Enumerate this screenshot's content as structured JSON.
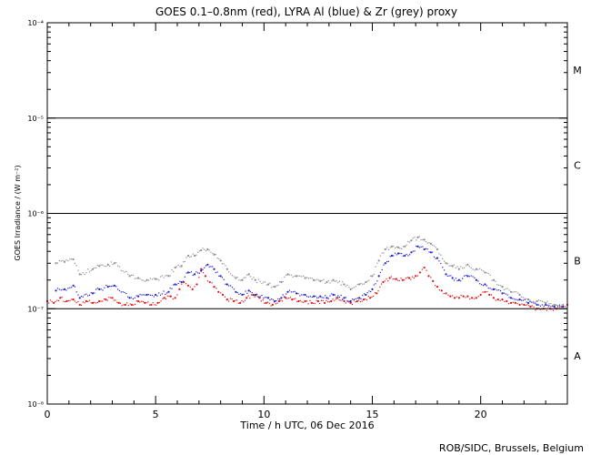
{
  "chart_data": {
    "type": "scatter",
    "title": "GOES 0.1–0.8nm (red), LYRA Al (blue) & Zr (grey) proxy",
    "xlabel": "Time / h UTC, 06 Dec 2016",
    "ylabel": "GOES Irradiance / (W m⁻²)",
    "credit": "ROB/SIDC, Brussels, Belgium",
    "x_range": [
      0,
      24
    ],
    "y_range": [
      1e-08,
      0.0001
    ],
    "y_scale": "log",
    "x_ticks": [
      0,
      5,
      10,
      15,
      20
    ],
    "x_tick_labels": [
      "0",
      "5",
      "10",
      "15",
      "20"
    ],
    "y_ticks": [
      1e-08,
      1e-07,
      1e-06,
      1e-05,
      0.0001
    ],
    "y_tick_labels": [
      "10⁻⁸",
      "10⁻⁷",
      "10⁻⁶",
      "10⁻⁵",
      "10⁻⁴"
    ],
    "flare_class_lines": [
      1e-07,
      1e-06,
      1e-05
    ],
    "flare_classes": [
      {
        "label": "A",
        "flux": 3.2e-08
      },
      {
        "label": "B",
        "flux": 3.2e-07
      },
      {
        "label": "C",
        "flux": 3.2e-06
      },
      {
        "label": "M",
        "flux": 3.2e-05
      }
    ],
    "series": [
      {
        "name": "GOES 0.1–0.8nm",
        "color": "#e01010",
        "x": [
          0.0,
          0.3,
          0.6,
          0.9,
          1.2,
          1.5,
          1.8,
          2.1,
          2.4,
          2.7,
          3.0,
          3.3,
          3.6,
          3.9,
          4.2,
          4.5,
          4.8,
          5.1,
          5.4,
          5.7,
          5.9,
          6.1,
          6.3,
          6.5,
          6.7,
          6.9,
          7.1,
          7.3,
          7.5,
          7.7,
          7.9,
          8.1,
          8.3,
          8.6,
          8.9,
          9.2,
          9.5,
          9.8,
          10.1,
          10.4,
          10.7,
          11.0,
          11.3,
          11.6,
          11.9,
          12.2,
          12.5,
          12.8,
          13.1,
          13.4,
          13.7,
          14.0,
          14.3,
          14.6,
          14.9,
          15.2,
          15.5,
          15.8,
          16.1,
          16.4,
          16.7,
          17.0,
          17.2,
          17.4,
          17.6,
          17.8,
          18.0,
          18.2,
          18.4,
          18.6,
          18.8,
          19.0,
          19.2,
          19.4,
          19.6,
          19.8,
          20.0,
          20.2,
          20.4,
          20.6,
          20.8,
          21.0,
          21.2,
          21.4,
          21.6,
          21.8,
          22.0,
          22.3,
          22.6,
          22.9,
          23.2,
          23.5,
          23.8,
          24.0
        ],
        "y": [
          1.2e-07,
          1.15e-07,
          1.3e-07,
          1.2e-07,
          1.25e-07,
          1.1e-07,
          1.2e-07,
          1.15e-07,
          1.2e-07,
          1.25e-07,
          1.3e-07,
          1.15e-07,
          1.1e-07,
          1.1e-07,
          1.2e-07,
          1.15e-07,
          1.1e-07,
          1.15e-07,
          1.3e-07,
          1.35e-07,
          1.3e-07,
          1.6e-07,
          1.9e-07,
          1.75e-07,
          1.6e-07,
          1.8e-07,
          2.6e-07,
          2.2e-07,
          1.9e-07,
          1.7e-07,
          1.5e-07,
          1.4e-07,
          1.25e-07,
          1.2e-07,
          1.15e-07,
          1.3e-07,
          1.4e-07,
          1.3e-07,
          1.15e-07,
          1.1e-07,
          1.2e-07,
          1.3e-07,
          1.25e-07,
          1.2e-07,
          1.2e-07,
          1.15e-07,
          1.2e-07,
          1.15e-07,
          1.2e-07,
          1.3e-07,
          1.2e-07,
          1.15e-07,
          1.2e-07,
          1.25e-07,
          1.3e-07,
          1.45e-07,
          1.9e-07,
          2.1e-07,
          2.05e-07,
          2e-07,
          2.1e-07,
          2.2e-07,
          2.4e-07,
          2.7e-07,
          2.2e-07,
          1.95e-07,
          1.7e-07,
          1.55e-07,
          1.45e-07,
          1.35e-07,
          1.3e-07,
          1.3e-07,
          1.35e-07,
          1.35e-07,
          1.3e-07,
          1.3e-07,
          1.4e-07,
          1.5e-07,
          1.4e-07,
          1.3e-07,
          1.25e-07,
          1.25e-07,
          1.2e-07,
          1.15e-07,
          1.15e-07,
          1.1e-07,
          1.1e-07,
          1.05e-07,
          1e-07,
          1e-07,
          1e-07,
          1e-07,
          1.05e-07,
          1.1e-07
        ]
      },
      {
        "name": "LYRA Al proxy",
        "color": "#1a1ad0",
        "x": [
          0.4,
          0.8,
          1.2,
          1.5,
          2.1,
          2.4,
          2.8,
          3.1,
          3.8,
          4.2,
          4.6,
          5.0,
          5.6,
          5.9,
          6.2,
          6.5,
          6.8,
          7.1,
          7.4,
          7.7,
          8.0,
          8.3,
          8.7,
          9.0,
          9.3,
          9.6,
          10.2,
          10.5,
          10.8,
          11.1,
          11.5,
          11.9,
          12.3,
          12.6,
          12.9,
          13.2,
          13.7,
          14.0,
          14.4,
          14.7,
          15.0,
          15.3,
          15.6,
          15.9,
          16.2,
          16.5,
          16.8,
          17.1,
          17.4,
          17.7,
          18.0,
          18.4,
          18.7,
          19.0,
          19.4,
          19.8,
          20.2,
          20.6,
          21.0,
          21.4,
          21.8,
          22.2,
          22.6,
          23.0,
          23.4,
          23.8
        ],
        "y": [
          1.55e-07,
          1.6e-07,
          1.75e-07,
          1.3e-07,
          1.45e-07,
          1.6e-07,
          1.7e-07,
          1.75e-07,
          1.3e-07,
          1.35e-07,
          1.4e-07,
          1.4e-07,
          1.5e-07,
          1.8e-07,
          1.9e-07,
          2.4e-07,
          2.3e-07,
          2.5e-07,
          2.9e-07,
          2.6e-07,
          2.2e-07,
          1.8e-07,
          1.5e-07,
          1.4e-07,
          1.55e-07,
          1.4e-07,
          1.3e-07,
          1.2e-07,
          1.3e-07,
          1.5e-07,
          1.45e-07,
          1.4e-07,
          1.35e-07,
          1.35e-07,
          1.3e-07,
          1.4e-07,
          1.3e-07,
          1.2e-07,
          1.3e-07,
          1.4e-07,
          1.6e-07,
          2.2e-07,
          3e-07,
          3.6e-07,
          3.8e-07,
          3.6e-07,
          3.9e-07,
          4.5e-07,
          4.2e-07,
          3.9e-07,
          3.4e-07,
          2.3e-07,
          2.1e-07,
          2e-07,
          2.2e-07,
          2e-07,
          1.8e-07,
          1.6e-07,
          1.45e-07,
          1.3e-07,
          1.25e-07,
          1.15e-07,
          1.1e-07,
          1.1e-07,
          1.05e-07,
          1.05e-07
        ]
      },
      {
        "name": "LYRA Zr proxy",
        "color": "#8c8c8c",
        "x": [
          0.4,
          0.8,
          1.2,
          1.5,
          2.1,
          2.4,
          2.8,
          3.1,
          3.8,
          4.2,
          4.6,
          5.0,
          5.6,
          5.9,
          6.2,
          6.5,
          6.8,
          7.1,
          7.4,
          7.7,
          8.0,
          8.3,
          8.7,
          9.0,
          9.3,
          9.6,
          10.2,
          10.5,
          10.8,
          11.1,
          11.5,
          11.9,
          12.3,
          12.6,
          12.9,
          13.2,
          13.7,
          14.0,
          14.4,
          14.7,
          15.0,
          15.3,
          15.6,
          15.9,
          16.2,
          16.5,
          16.8,
          17.1,
          17.4,
          17.7,
          18.0,
          18.4,
          18.7,
          19.0,
          19.4,
          19.8,
          20.2,
          20.6,
          21.0,
          21.4,
          21.8,
          22.2,
          22.6,
          23.0,
          23.4,
          23.8
        ],
        "y": [
          3e-07,
          3.1e-07,
          3.3e-07,
          2.3e-07,
          2.6e-07,
          2.8e-07,
          2.9e-07,
          3e-07,
          2.2e-07,
          2.1e-07,
          2e-07,
          2.05e-07,
          2.2e-07,
          2.7e-07,
          2.8e-07,
          3.6e-07,
          3.6e-07,
          4.1e-07,
          4.2e-07,
          3.7e-07,
          3.2e-07,
          2.6e-07,
          2.1e-07,
          2e-07,
          2.3e-07,
          2e-07,
          1.8e-07,
          1.7e-07,
          1.9e-07,
          2.3e-07,
          2.2e-07,
          2.1e-07,
          2e-07,
          1.95e-07,
          1.9e-07,
          2e-07,
          1.8e-07,
          1.6e-07,
          1.8e-07,
          1.9e-07,
          2.2e-07,
          3.2e-07,
          4.2e-07,
          4.5e-07,
          4.4e-07,
          4.5e-07,
          5.2e-07,
          5.6e-07,
          5.3e-07,
          4.8e-07,
          4.2e-07,
          3e-07,
          2.8e-07,
          2.6e-07,
          2.9e-07,
          2.6e-07,
          2.4e-07,
          2e-07,
          1.7e-07,
          1.5e-07,
          1.4e-07,
          1.25e-07,
          1.2e-07,
          1.15e-07,
          1.1e-07,
          1.1e-07
        ]
      }
    ]
  }
}
